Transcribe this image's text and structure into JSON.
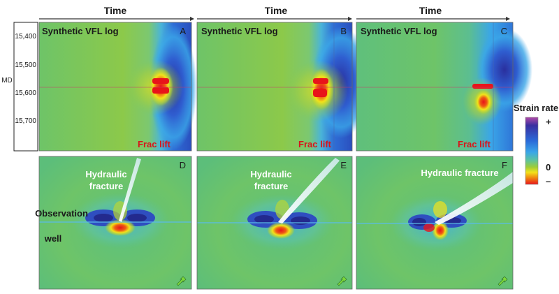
{
  "time_label": "Time",
  "md_axis": {
    "label": "MD",
    "ticks": [
      "15,400",
      "15,500",
      "15,600",
      "15,700"
    ]
  },
  "panels_top": [
    {
      "letter": "A",
      "title": "Synthetic VFL log",
      "annotation": "Frac lift"
    },
    {
      "letter": "B",
      "title": "Synthetic VFL log",
      "annotation": "Frac lift"
    },
    {
      "letter": "C",
      "title": "Synthetic VFL log",
      "annotation": "Frac lift"
    }
  ],
  "panels_bottom": [
    {
      "letter": "D",
      "fracture_label_1": "Hydraulic",
      "fracture_label_2": "fracture",
      "well_label_1": "Observation",
      "well_label_2": "well"
    },
    {
      "letter": "E",
      "fracture_label_1": "Hydraulic",
      "fracture_label_2": "fracture"
    },
    {
      "letter": "F",
      "fracture_label_1": "Hydraulic fracture",
      "fracture_label_2": ""
    }
  ],
  "colorbar": {
    "title": "Strain rate",
    "plus": "+",
    "zero": "0",
    "minus": "–",
    "colors": [
      "#b04aa8",
      "#3a2fa0",
      "#2a6ad8",
      "#3aa6e8",
      "#5cc3a0",
      "#9ccc3a",
      "#f2e21a",
      "#f08a10",
      "#e8141a"
    ]
  },
  "colors": {
    "background_green": "#6ec468",
    "frac_lift_text": "#d8141a",
    "letter_text": "#1a1a1a",
    "white_text": "#ffffff",
    "fracture_fill": "#e8f4f8"
  }
}
